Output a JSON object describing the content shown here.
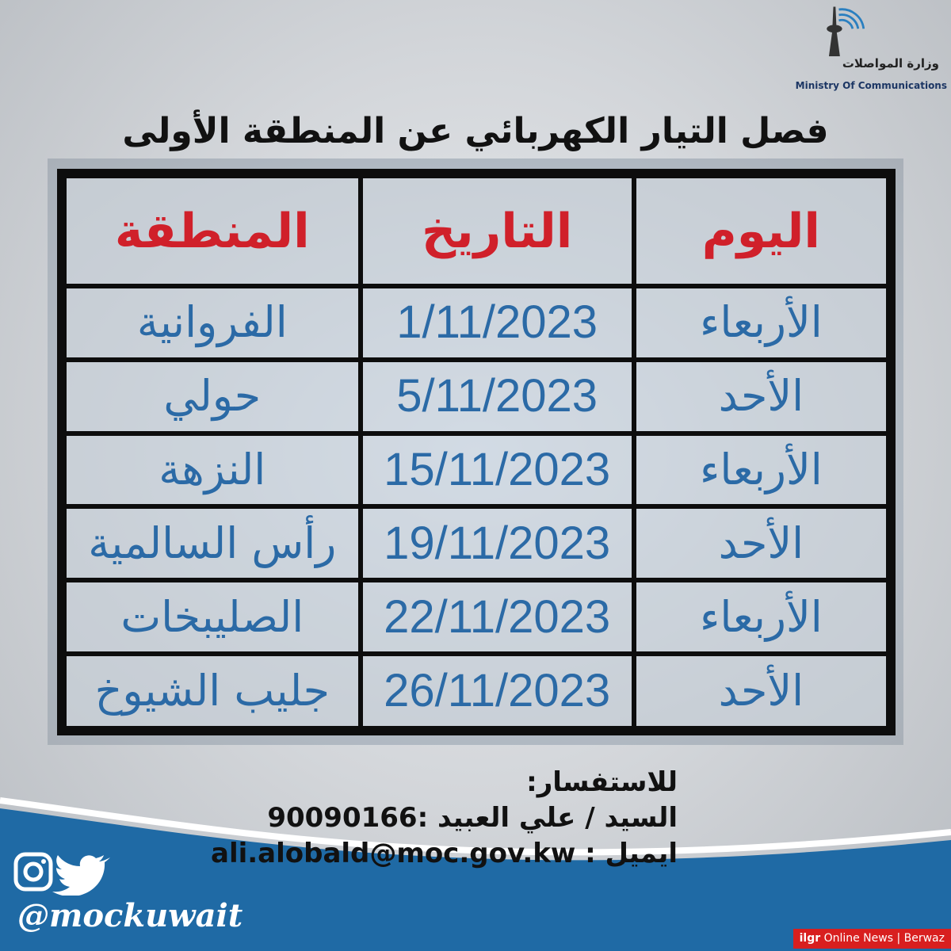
{
  "logo": {
    "arabic": "وزارة المواصلات",
    "english": "Ministry Of Communications"
  },
  "title": "فصل التيار الكهربائي عن المنطقة الأولى",
  "table": {
    "headers": [
      "اليوم",
      "التاريخ",
      "المنطقة"
    ],
    "rows": [
      {
        "day": "الأربعاء",
        "date": "1/11/2023",
        "area": "الفروانية"
      },
      {
        "day": "الأحد",
        "date": "5/11/2023",
        "area": "حولي"
      },
      {
        "day": "الأربعاء",
        "date": "15/11/2023",
        "area": "النزهة"
      },
      {
        "day": "الأحد",
        "date": "19/11/2023",
        "area": "رأس السالمية"
      },
      {
        "day": "الأربعاء",
        "date": "22/11/2023",
        "area": "الصليبخات"
      },
      {
        "day": "الأحد",
        "date": "26/11/2023",
        "area": "جليب الشيوخ"
      }
    ]
  },
  "contact": {
    "heading": "للاستفسار:",
    "person": "السيد / علي العبيد :90090166",
    "email": "ايميل : ali.alobald@moc.gov.kw"
  },
  "social": {
    "handle": "@mockuwait",
    "icons": [
      "instagram-icon",
      "twitter-icon"
    ]
  },
  "watermark": {
    "brand": "ilgr",
    "text": "Online News | Berwaz"
  },
  "colors": {
    "header_red": "#d0202a",
    "cell_blue": "#2b6aa6",
    "wave_blue": "#1f6aa5"
  }
}
